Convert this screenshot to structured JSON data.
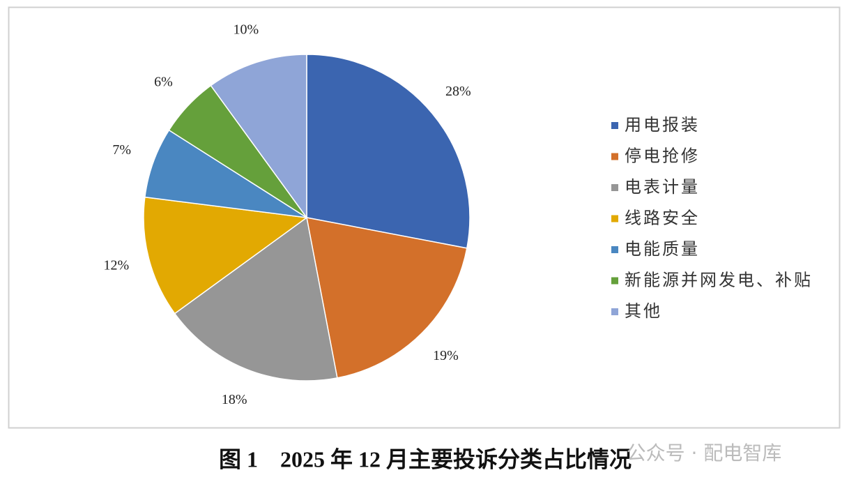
{
  "chart_data": {
    "type": "pie",
    "categories": [
      "用电报装",
      "停电抢修",
      "电表计量",
      "线路安全",
      "电能质量",
      "新能源并网发电、补贴",
      "其他"
    ],
    "values": [
      28,
      19,
      18,
      12,
      7,
      6,
      10
    ],
    "value_labels": [
      "28%",
      "19%",
      "18%",
      "12%",
      "7%",
      "6%",
      "10%"
    ],
    "colors": [
      "#3b65b0",
      "#d3702a",
      "#969696",
      "#e2a902",
      "#4a87c1",
      "#65a03b",
      "#8fa5d7"
    ],
    "legend": "right",
    "caption": "图 1　2025 年 12 月主要投诉分类占比情况"
  },
  "watermark": "公众号 · 配电智库"
}
